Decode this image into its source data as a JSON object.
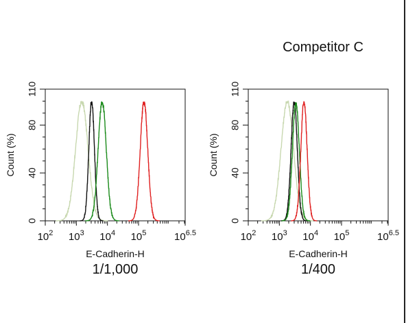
{
  "chart_data": [
    {
      "type": "line",
      "title": "",
      "dilution": "1/1,000",
      "xlabel": "E-Cadherin-H",
      "ylabel": "Count  (%)",
      "xscale": "log",
      "xlim": [
        100,
        3162278
      ],
      "ylim": [
        0,
        110
      ],
      "yticks": [
        0,
        40,
        80,
        110
      ],
      "ytick_labels": [
        "0",
        "40",
        "80",
        "110"
      ],
      "xticks": [
        100,
        1000,
        10000,
        100000,
        3162278
      ],
      "xtick_labels": [
        {
          "base": "10",
          "exp": "2"
        },
        {
          "base": "10",
          "exp": "3"
        },
        {
          "base": "10",
          "exp": "4"
        },
        {
          "base": "10",
          "exp": "5"
        },
        {
          "base": "10",
          "exp": "6.5"
        }
      ],
      "grid": false,
      "series": [
        {
          "color": "#c8d8b0",
          "peak_x": 1500,
          "peak_y": 100,
          "width_decades": 0.2
        },
        {
          "color": "#111111",
          "peak_x": 3100,
          "peak_y": 100,
          "width_decades": 0.09
        },
        {
          "color": "#1a8a1a",
          "peak_x": 6800,
          "peak_y": 100,
          "width_decades": 0.13
        },
        {
          "color": "#e02020",
          "peak_x": 150000,
          "peak_y": 100,
          "width_decades": 0.12
        }
      ]
    },
    {
      "type": "line",
      "title": "Competitor C",
      "dilution": "1/400",
      "xlabel": "E-Cadherin-H",
      "ylabel": "Count  (%)",
      "xscale": "log",
      "xlim": [
        100,
        3162278
      ],
      "ylim": [
        0,
        110
      ],
      "yticks": [
        0,
        40,
        80,
        110
      ],
      "ytick_labels": [
        "0",
        "40",
        "80",
        "110"
      ],
      "xticks": [
        100,
        1000,
        10000,
        100000,
        3162278
      ],
      "xtick_labels": [
        {
          "base": "10",
          "exp": "2"
        },
        {
          "base": "10",
          "exp": "3"
        },
        {
          "base": "10",
          "exp": "4"
        },
        {
          "base": "10",
          "exp": "5"
        },
        {
          "base": "10",
          "exp": "6.5"
        }
      ],
      "grid": false,
      "series": [
        {
          "color": "#c8d8b0",
          "peak_x": 1800,
          "peak_y": 100,
          "width_decades": 0.2
        },
        {
          "color": "#111111",
          "peak_x": 3000,
          "peak_y": 100,
          "width_decades": 0.1
        },
        {
          "color": "#1a8a1a",
          "peak_x": 3400,
          "peak_y": 99,
          "width_decades": 0.11
        },
        {
          "color": "#e02020",
          "peak_x": 6200,
          "peak_y": 100,
          "width_decades": 0.1
        }
      ]
    }
  ]
}
